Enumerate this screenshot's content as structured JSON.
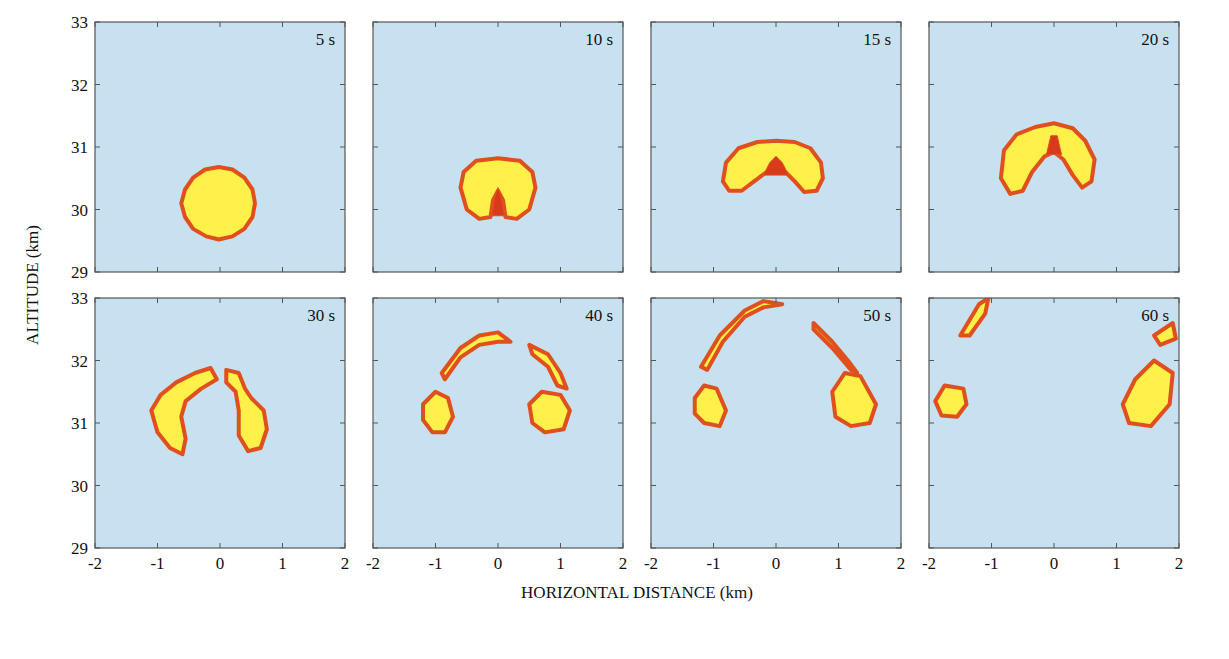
{
  "chart_data": {
    "type": "area",
    "xlabel": "HORIZONTAL DISTANCE (km)",
    "ylabel": "ALTITUDE (km)",
    "xlim": [
      -2,
      2
    ],
    "ylim": [
      29,
      33
    ],
    "xticks": [
      -2,
      -1,
      0,
      1,
      2
    ],
    "yticks": [
      29,
      30,
      31,
      32,
      33
    ],
    "color": "#fff04a",
    "panels": [
      {
        "title": "5 s",
        "regions": [
          {
            "x": [
              0.56,
              0.52,
              0.39,
              0.2,
              -0.02,
              -0.24,
              -0.43,
              -0.56,
              -0.62,
              -0.56,
              -0.43,
              -0.22,
              -0.02,
              0.2,
              0.39,
              0.52
            ],
            "y": [
              30.1,
              30.32,
              30.51,
              30.64,
              30.68,
              30.64,
              30.51,
              30.32,
              30.1,
              29.88,
              29.69,
              29.57,
              29.52,
              29.57,
              29.69,
              29.88
            ]
          }
        ]
      },
      {
        "title": "10 s",
        "regions": [
          {
            "x": [
              -0.6,
              -0.55,
              -0.35,
              0,
              0.35,
              0.55,
              0.6,
              0.5,
              0.3,
              0.12,
              0.08,
              0,
              -0.08,
              -0.12,
              -0.3,
              -0.5
            ],
            "y": [
              30.35,
              30.6,
              30.78,
              30.82,
              30.78,
              30.6,
              30.35,
              30.0,
              29.85,
              29.88,
              30.15,
              30.3,
              30.15,
              29.88,
              29.85,
              30.0
            ]
          },
          {
            "x": [
              -0.1,
              0.1,
              0.05,
              0,
              -0.05
            ],
            "y": [
              29.9,
              29.9,
              30.2,
              30.35,
              30.2
            ],
            "color": "#d83a1a"
          }
        ]
      },
      {
        "title": "15 s",
        "regions": [
          {
            "x": [
              -0.85,
              -0.8,
              -0.6,
              -0.3,
              0,
              0.3,
              0.55,
              0.72,
              0.75,
              0.65,
              0.45,
              0.3,
              0.15,
              0,
              -0.15,
              -0.35,
              -0.55,
              -0.75
            ],
            "y": [
              30.45,
              30.75,
              30.98,
              31.08,
              31.1,
              31.08,
              30.98,
              30.75,
              30.5,
              30.3,
              30.28,
              30.45,
              30.6,
              30.65,
              30.6,
              30.45,
              30.3,
              30.3
            ]
          },
          {
            "x": [
              -0.2,
              0.2,
              0.1,
              0,
              -0.1
            ],
            "y": [
              30.55,
              30.55,
              30.75,
              30.85,
              30.75
            ],
            "color": "#d83a1a"
          }
        ]
      },
      {
        "title": "20 s",
        "regions": [
          {
            "x": [
              -0.85,
              -0.8,
              -0.6,
              -0.3,
              0,
              0.3,
              0.5,
              0.65,
              0.6,
              0.45,
              0.3,
              0.15,
              0,
              -0.15,
              -0.35,
              -0.5,
              -0.7
            ],
            "y": [
              30.5,
              30.95,
              31.2,
              31.32,
              31.38,
              31.3,
              31.1,
              30.8,
              30.45,
              30.35,
              30.55,
              30.8,
              30.92,
              30.85,
              30.6,
              30.3,
              30.25
            ]
          },
          {
            "x": [
              -0.12,
              0.12,
              0.05,
              -0.05
            ],
            "y": [
              30.88,
              30.88,
              31.18,
              31.18
            ],
            "color": "#d83a1a"
          }
        ]
      },
      {
        "title": "30 s",
        "regions": [
          {
            "x": [
              -1.1,
              -0.95,
              -0.7,
              -0.4,
              -0.15,
              -0.05,
              -0.3,
              -0.55,
              -0.62,
              -0.55,
              -0.6,
              -0.8,
              -1.0
            ],
            "y": [
              31.2,
              31.45,
              31.65,
              31.8,
              31.88,
              31.7,
              31.55,
              31.35,
              31.1,
              30.75,
              30.5,
              30.6,
              30.85
            ]
          },
          {
            "x": [
              0.1,
              0.3,
              0.4,
              0.5,
              0.7,
              0.75,
              0.65,
              0.45,
              0.3,
              0.3,
              0.25,
              0.1
            ],
            "y": [
              31.85,
              31.8,
              31.55,
              31.4,
              31.2,
              30.9,
              30.6,
              30.55,
              30.8,
              31.2,
              31.5,
              31.65
            ]
          }
        ]
      },
      {
        "title": "40 s",
        "regions": [
          {
            "x": [
              -1.2,
              -1.0,
              -0.8,
              -0.72,
              -0.85,
              -1.05,
              -1.2
            ],
            "y": [
              31.3,
              31.5,
              31.4,
              31.1,
              30.85,
              30.85,
              31.05
            ]
          },
          {
            "x": [
              0.5,
              0.7,
              1.0,
              1.15,
              1.05,
              0.75,
              0.55
            ],
            "y": [
              31.3,
              31.5,
              31.45,
              31.2,
              30.9,
              30.85,
              31.0
            ]
          },
          {
            "x": [
              -0.9,
              -0.6,
              -0.3,
              0,
              0.2,
              0,
              -0.3,
              -0.6,
              -0.85
            ],
            "y": [
              31.8,
              32.2,
              32.4,
              32.45,
              32.3,
              32.3,
              32.25,
              32.05,
              31.7
            ]
          },
          {
            "x": [
              0.5,
              0.8,
              1.0,
              1.1,
              0.95,
              0.8,
              0.55
            ],
            "y": [
              32.25,
              32.1,
              31.8,
              31.55,
              31.6,
              31.9,
              32.1
            ]
          }
        ]
      },
      {
        "title": "50 s",
        "regions": [
          {
            "x": [
              -1.3,
              -1.15,
              -0.95,
              -0.8,
              -0.9,
              -1.15,
              -1.3
            ],
            "y": [
              31.4,
              31.6,
              31.55,
              31.2,
              30.95,
              31.0,
              31.15
            ]
          },
          {
            "x": [
              0.9,
              1.1,
              1.35,
              1.6,
              1.5,
              1.2,
              0.95
            ],
            "y": [
              31.5,
              31.8,
              31.75,
              31.3,
              31.0,
              30.95,
              31.1
            ]
          },
          {
            "x": [
              -1.2,
              -0.9,
              -0.5,
              -0.2,
              0.1,
              -0.2,
              -0.5,
              -0.85,
              -1.1
            ],
            "y": [
              31.9,
              32.4,
              32.8,
              32.95,
              32.9,
              32.85,
              32.7,
              32.3,
              31.85
            ]
          },
          {
            "x": [
              0.6,
              0.9,
              1.15,
              1.3,
              1.2,
              0.9,
              0.6
            ],
            "y": [
              32.6,
              32.3,
              32.0,
              31.8,
              31.85,
              32.2,
              32.5
            ]
          }
        ]
      },
      {
        "title": "60 s",
        "regions": [
          {
            "x": [
              -1.9,
              -1.75,
              -1.45,
              -1.4,
              -1.55,
              -1.8
            ],
            "y": [
              31.35,
              31.6,
              31.55,
              31.3,
              31.1,
              31.12
            ]
          },
          {
            "x": [
              1.1,
              1.3,
              1.6,
              1.9,
              1.85,
              1.55,
              1.2
            ],
            "y": [
              31.3,
              31.7,
              32.0,
              31.8,
              31.3,
              30.95,
              31.0
            ]
          },
          {
            "x": [
              -1.5,
              -1.2,
              -1.05,
              -1.1,
              -1.35
            ],
            "y": [
              32.4,
              32.9,
              33.0,
              32.75,
              32.4
            ]
          },
          {
            "x": [
              1.6,
              1.9,
              1.95,
              1.7
            ],
            "y": [
              32.4,
              32.6,
              32.35,
              32.25
            ]
          }
        ]
      }
    ]
  }
}
